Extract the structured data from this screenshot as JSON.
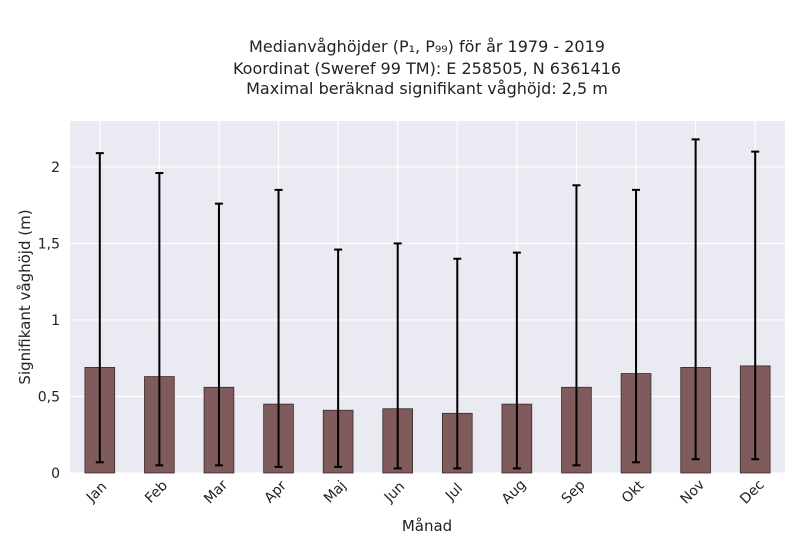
{
  "chart_data": {
    "type": "bar",
    "title_lines": [
      "Medianvåghöjder (P₁, P₉₉) för år 1979 - 2019",
      "Koordinat (Sweref 99 TM): E 258505, N 6361416",
      "Maximal beräknad signifikant våghöjd: 2,5 m"
    ],
    "xlabel": "Månad",
    "ylabel": "Signifikant våghöjd (m)",
    "categories": [
      "Jan",
      "Feb",
      "Mar",
      "Apr",
      "Maj",
      "Jun",
      "Jul",
      "Aug",
      "Sep",
      "Okt",
      "Nov",
      "Dec"
    ],
    "values": [
      0.69,
      0.63,
      0.56,
      0.45,
      0.41,
      0.42,
      0.39,
      0.45,
      0.56,
      0.65,
      0.69,
      0.7
    ],
    "p1": [
      0.07,
      0.05,
      0.05,
      0.04,
      0.04,
      0.03,
      0.03,
      0.03,
      0.05,
      0.07,
      0.09,
      0.09
    ],
    "p99": [
      2.09,
      1.96,
      1.76,
      1.85,
      1.46,
      1.5,
      1.4,
      1.44,
      1.88,
      1.85,
      2.18,
      2.1
    ],
    "ylim": [
      0,
      2.3
    ],
    "yticks": [
      0,
      0.5,
      1,
      1.5,
      2
    ],
    "ytick_labels": [
      "0",
      "0,5",
      "1",
      "1,5",
      "2"
    ],
    "grid": true,
    "colors": {
      "bar": "#7f5b5b",
      "bar_edge": "#3a2a2a",
      "plot_bg": "#eaeaf2",
      "grid": "#ffffff",
      "errorbar": "#000000"
    }
  }
}
